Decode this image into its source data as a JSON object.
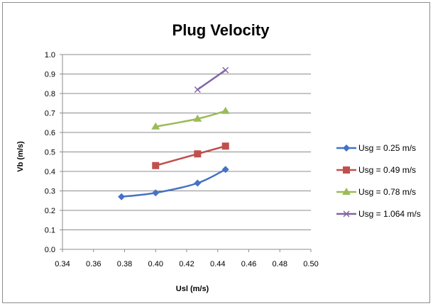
{
  "chart_data": {
    "type": "line",
    "title": "Plug Velocity",
    "xlabel": "Usl (m/s)",
    "ylabel": "Vb (m/s)",
    "xlim": [
      0.34,
      0.5
    ],
    "ylim": [
      0.0,
      1.0
    ],
    "x_ticks": [
      "0.34",
      "0.36",
      "0.38",
      "0.40",
      "0.42",
      "0.44",
      "0.46",
      "0.48",
      "0.50"
    ],
    "y_ticks": [
      "0.0",
      "0.1",
      "0.2",
      "0.3",
      "0.4",
      "0.5",
      "0.6",
      "0.7",
      "0.8",
      "0.9",
      "1.0"
    ],
    "grid": "horizontal",
    "legend_position": "right",
    "series": [
      {
        "name": "Usg = 0.25 m/s",
        "color": "#4472c4",
        "marker": "diamond",
        "x": [
          0.378,
          0.4,
          0.427,
          0.445
        ],
        "y": [
          0.27,
          0.29,
          0.34,
          0.41
        ]
      },
      {
        "name": "Usg = 0.49 m/s",
        "color": "#c0504d",
        "marker": "square",
        "x": [
          0.4,
          0.427,
          0.445
        ],
        "y": [
          0.43,
          0.49,
          0.53
        ]
      },
      {
        "name": "Usg = 0.78 m/s",
        "color": "#9bbb59",
        "marker": "triangle",
        "x": [
          0.4,
          0.427,
          0.445
        ],
        "y": [
          0.63,
          0.67,
          0.71
        ]
      },
      {
        "name": "Usg = 1.064 m/s",
        "color": "#8064a2",
        "marker": "x",
        "x": [
          0.427,
          0.445
        ],
        "y": [
          0.82,
          0.92
        ]
      }
    ]
  }
}
